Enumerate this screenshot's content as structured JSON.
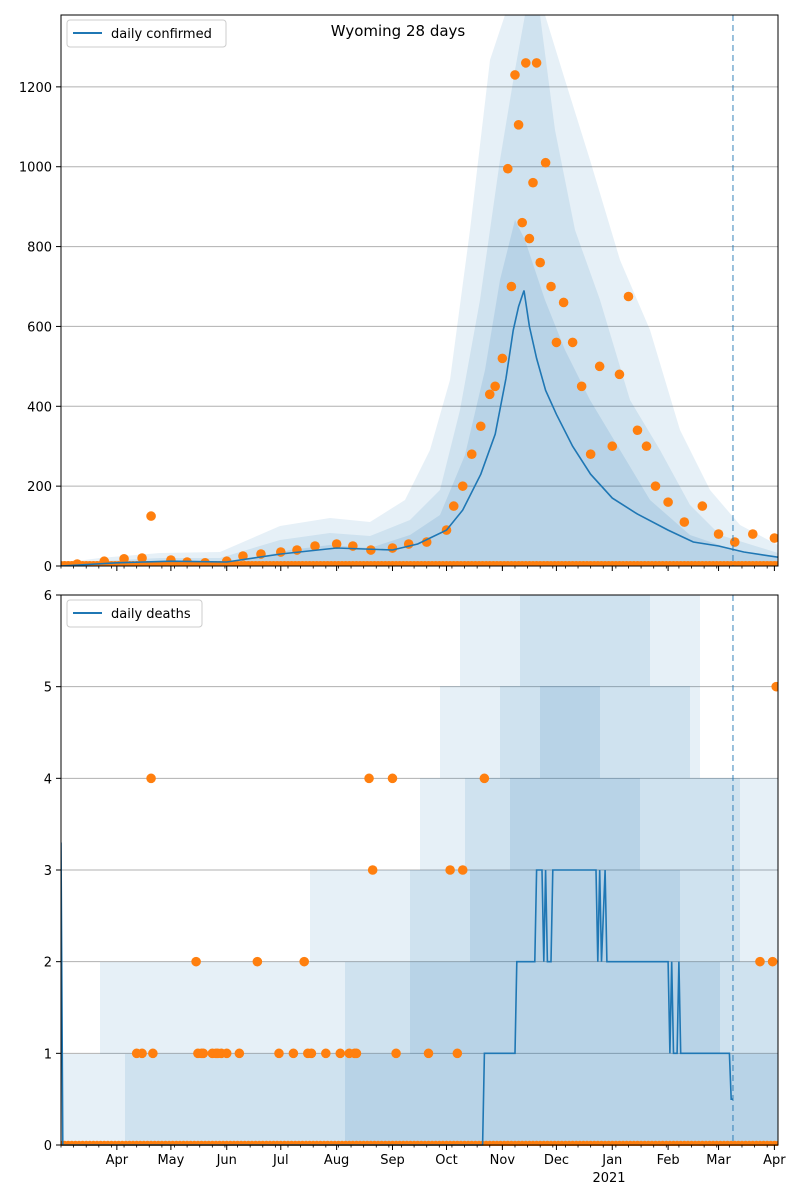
{
  "chart_data": [
    {
      "type": "line",
      "title": "Wyoming 28 days",
      "xlabel": "",
      "ylabel": "",
      "x_range": [
        "2020-03-01",
        "2021-04-03"
      ],
      "ylim": [
        0,
        1380
      ],
      "yticks": [
        0,
        200,
        400,
        600,
        800,
        1000,
        1200
      ],
      "grid": "horizontal",
      "legend": "top-left",
      "marker_date": "2021-03-09",
      "colors": {
        "line": "#1f77b4",
        "points": "#ff7f0e",
        "band": "#1f77b4",
        "marker": "#1f77b4"
      },
      "series": [
        {
          "name": "daily confirmed",
          "kind": "line",
          "x": [
            "2020-03-01",
            "2020-04-01",
            "2020-05-01",
            "2020-06-01",
            "2020-07-01",
            "2020-08-01",
            "2020-09-01",
            "2020-09-15",
            "2020-10-01",
            "2020-10-10",
            "2020-10-20",
            "2020-10-28",
            "2020-11-03",
            "2020-11-07",
            "2020-11-10",
            "2020-11-13",
            "2020-11-16",
            "2020-11-20",
            "2020-11-25",
            "2020-12-01",
            "2020-12-10",
            "2020-12-20",
            "2021-01-01",
            "2021-01-15",
            "2021-02-01",
            "2021-02-15",
            "2021-03-01",
            "2021-03-15",
            "2021-04-03"
          ],
          "y": [
            0,
            8,
            12,
            10,
            30,
            45,
            40,
            55,
            90,
            140,
            230,
            330,
            470,
            590,
            650,
            690,
            600,
            520,
            440,
            380,
            300,
            230,
            170,
            130,
            90,
            60,
            50,
            35,
            22
          ]
        },
        {
          "name": "",
          "kind": "scatter",
          "x": [
            "2020-03-10",
            "2020-03-25",
            "2020-04-05",
            "2020-04-15",
            "2020-04-20",
            "2020-05-01",
            "2020-05-10",
            "2020-05-20",
            "2020-06-01",
            "2020-06-10",
            "2020-06-20",
            "2020-07-01",
            "2020-07-10",
            "2020-07-20",
            "2020-08-01",
            "2020-08-10",
            "2020-08-20",
            "2020-09-01",
            "2020-09-10",
            "2020-09-20",
            "2020-10-01",
            "2020-10-05",
            "2020-10-10",
            "2020-10-15",
            "2020-10-20",
            "2020-10-25",
            "2020-10-28",
            "2020-11-01",
            "2020-11-04",
            "2020-11-06",
            "2020-11-08",
            "2020-11-10",
            "2020-11-12",
            "2020-11-14",
            "2020-11-16",
            "2020-11-18",
            "2020-11-20",
            "2020-11-22",
            "2020-11-25",
            "2020-11-28",
            "2020-12-01",
            "2020-12-05",
            "2020-12-10",
            "2020-12-15",
            "2020-12-20",
            "2020-12-25",
            "2021-01-01",
            "2021-01-05",
            "2021-01-10",
            "2021-01-15",
            "2021-01-20",
            "2021-01-25",
            "2021-02-01",
            "2021-02-10",
            "2021-02-20",
            "2021-03-01",
            "2021-03-10",
            "2021-03-20",
            "2021-04-01"
          ],
          "y": [
            5,
            12,
            18,
            20,
            125,
            15,
            10,
            8,
            12,
            25,
            30,
            35,
            40,
            50,
            55,
            50,
            40,
            45,
            55,
            60,
            90,
            150,
            200,
            280,
            350,
            430,
            450,
            520,
            995,
            700,
            1230,
            1105,
            860,
            1260,
            820,
            960,
            1260,
            760,
            1010,
            700,
            560,
            660,
            560,
            450,
            280,
            500,
            300,
            480,
            675,
            340,
            300,
            200,
            160,
            110,
            150,
            80,
            60,
            80,
            70
          ]
        }
      ]
    },
    {
      "type": "line",
      "title": "",
      "xlabel": "",
      "ylabel": "",
      "x_range": [
        "2020-03-01",
        "2021-04-03"
      ],
      "ylim": [
        0,
        6
      ],
      "yticks": [
        0,
        1,
        2,
        3,
        4,
        5,
        6
      ],
      "grid": "horizontal",
      "legend": "top-left",
      "marker_date": "2021-03-09",
      "colors": {
        "line": "#1f77b4",
        "points": "#ff7f0e",
        "band": "#1f77b4",
        "marker": "#1f77b4"
      },
      "series": [
        {
          "name": "daily deaths",
          "kind": "line",
          "x": [
            "2020-03-01",
            "2020-03-02",
            "2020-10-21",
            "2020-10-22",
            "2020-11-08",
            "2020-11-09",
            "2020-11-19",
            "2020-11-20",
            "2020-11-23",
            "2020-11-24",
            "2020-11-25",
            "2020-11-26",
            "2020-11-28",
            "2020-11-29",
            "2020-12-23",
            "2020-12-24",
            "2020-12-25",
            "2020-12-26",
            "2020-12-28",
            "2020-12-29",
            "2020-12-30",
            "2020-12-31",
            "2021-02-01",
            "2021-02-02",
            "2021-02-03",
            "2021-02-04",
            "2021-02-06",
            "2021-02-07",
            "2021-02-08",
            "2021-02-09",
            "2021-03-07",
            "2021-03-08",
            "2021-03-09"
          ],
          "y": [
            3.3,
            0,
            0,
            1,
            1,
            2,
            2,
            3,
            3,
            2,
            3,
            2,
            2,
            3,
            3,
            2,
            3,
            2,
            3,
            2,
            2,
            2,
            2,
            1,
            2,
            1,
            1,
            2,
            1,
            1,
            1,
            0.5,
            0.5
          ]
        },
        {
          "name": "",
          "kind": "scatter",
          "x": [
            "2020-04-12",
            "2020-04-15",
            "2020-04-20",
            "2020-04-21",
            "2020-05-15",
            "2020-05-16",
            "2020-05-18",
            "2020-05-19",
            "2020-05-24",
            "2020-05-26",
            "2020-05-27",
            "2020-05-29",
            "2020-06-01",
            "2020-06-08",
            "2020-06-18",
            "2020-06-30",
            "2020-07-08",
            "2020-07-14",
            "2020-07-16",
            "2020-07-18",
            "2020-07-26",
            "2020-08-03",
            "2020-08-08",
            "2020-08-11",
            "2020-08-12",
            "2020-08-19",
            "2020-08-21",
            "2020-09-01",
            "2020-09-03",
            "2020-09-21",
            "2020-10-03",
            "2020-10-07",
            "2020-10-10",
            "2020-10-22",
            "2021-03-24",
            "2021-03-31",
            "2021-04-02"
          ],
          "y": [
            1,
            1,
            4,
            1,
            2,
            1,
            1,
            1,
            1,
            1,
            1,
            1,
            1,
            1,
            2,
            1,
            1,
            2,
            1,
            1,
            1,
            1,
            1,
            1,
            1,
            4,
            3,
            4,
            1,
            1,
            3,
            1,
            3,
            4,
            2,
            2,
            5
          ]
        }
      ]
    }
  ],
  "x_tick_labels": [
    "Apr",
    "May",
    "Jun",
    "Jul",
    "Aug",
    "Sep",
    "Oct",
    "Nov",
    "Dec",
    "Jan",
    "Feb",
    "Mar",
    "Apr"
  ],
  "x_year_label": "2021"
}
